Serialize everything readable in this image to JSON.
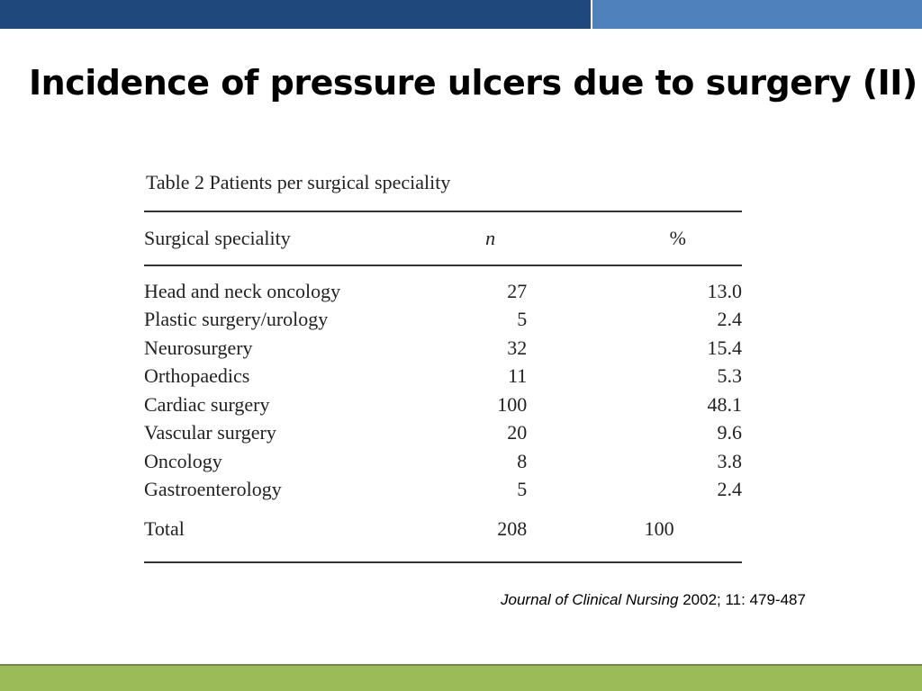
{
  "title": "Incidence of pressure ulcers due to surgery (II)",
  "table": {
    "caption": "Table 2  Patients per surgical speciality",
    "headers": [
      "Surgical speciality",
      "n",
      "%"
    ],
    "rows": [
      {
        "name": "Head and neck oncology",
        "n": "27",
        "pct": "13.0"
      },
      {
        "name": "Plastic surgery/urology",
        "n": "5",
        "pct": "2.4"
      },
      {
        "name": "Neurosurgery",
        "n": "32",
        "pct": "15.4"
      },
      {
        "name": "Orthopaedics",
        "n": "11",
        "pct": "5.3"
      },
      {
        "name": "Cardiac surgery",
        "n": "100",
        "pct": "48.1"
      },
      {
        "name": "Vascular surgery",
        "n": "20",
        "pct": "9.6"
      },
      {
        "name": "Oncology",
        "n": "8",
        "pct": "3.8"
      },
      {
        "name": "Gastroenterology",
        "n": "5",
        "pct": "2.4"
      }
    ],
    "total": {
      "name": "Total",
      "n": "208",
      "pct": "100"
    }
  },
  "citation": {
    "journal": "Journal of Clinical Nursing",
    "details": " 2002; 11: 479-487"
  },
  "colors": {
    "top_bar_dark": "#1f497d",
    "top_bar_light": "#4f81bd",
    "bottom_bar": "#9bbb59"
  }
}
